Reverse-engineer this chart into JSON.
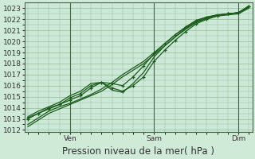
{
  "title": "Pression niveau de la mer( hPa )",
  "ylim": [
    1011.8,
    1023.5
  ],
  "yticks": [
    1012,
    1013,
    1014,
    1015,
    1016,
    1017,
    1018,
    1019,
    1020,
    1021,
    1022,
    1023
  ],
  "xtick_labels": [
    "Ven",
    "Sam",
    "Dim"
  ],
  "xtick_positions": [
    24,
    72,
    120
  ],
  "xlim": [
    -2,
    128
  ],
  "bg_color": "#d0ead8",
  "plot_bg": "#cce8d8",
  "grid_color": "#99bb99",
  "line_color": "#1a5c1a",
  "tick_fontsize": 6.5,
  "label_fontsize": 8.5,
  "series": [
    {
      "x": [
        0,
        6,
        12,
        18,
        24,
        30,
        36,
        42,
        48,
        54,
        60,
        66,
        72,
        78,
        84,
        90,
        96,
        102,
        108,
        114,
        120,
        126
      ],
      "y": [
        1012.5,
        1013.1,
        1013.7,
        1014.1,
        1014.4,
        1014.8,
        1015.2,
        1015.7,
        1016.3,
        1017.0,
        1017.6,
        1018.2,
        1019.0,
        1019.8,
        1020.6,
        1021.3,
        1021.9,
        1022.2,
        1022.4,
        1022.5,
        1022.6,
        1023.1
      ],
      "marker": false,
      "lw": 0.9
    },
    {
      "x": [
        0,
        6,
        12,
        18,
        24,
        30,
        36,
        42,
        48,
        54,
        60,
        66,
        72,
        78,
        84,
        90,
        96,
        102,
        108,
        114,
        120,
        126
      ],
      "y": [
        1013.0,
        1013.5,
        1014.0,
        1014.3,
        1014.7,
        1015.1,
        1015.8,
        1016.3,
        1016.2,
        1016.0,
        1016.8,
        1017.8,
        1018.9,
        1019.8,
        1020.6,
        1021.3,
        1021.9,
        1022.2,
        1022.4,
        1022.5,
        1022.6,
        1023.2
      ],
      "marker": true,
      "lw": 0.9
    },
    {
      "x": [
        0,
        6,
        12,
        18,
        24,
        30,
        36,
        42,
        48,
        54,
        60,
        66,
        72,
        78,
        84,
        90,
        96,
        102,
        108,
        114,
        120,
        126
      ],
      "y": [
        1013.1,
        1013.5,
        1013.9,
        1014.3,
        1014.9,
        1015.3,
        1016.0,
        1016.3,
        1015.8,
        1015.5,
        1016.0,
        1016.8,
        1018.2,
        1019.2,
        1020.1,
        1020.9,
        1021.6,
        1022.0,
        1022.3,
        1022.5,
        1022.6,
        1023.2
      ],
      "marker": true,
      "lw": 0.9
    },
    {
      "x": [
        0,
        6,
        12,
        18,
        24,
        30,
        36,
        42,
        48,
        54,
        60,
        66,
        72,
        78,
        84,
        90,
        96,
        102,
        108,
        114,
        120,
        126
      ],
      "y": [
        1013.2,
        1013.7,
        1014.1,
        1014.5,
        1015.1,
        1015.5,
        1016.2,
        1016.3,
        1015.6,
        1015.4,
        1016.2,
        1017.2,
        1018.6,
        1019.6,
        1020.4,
        1021.2,
        1021.8,
        1022.1,
        1022.3,
        1022.5,
        1022.6,
        1023.1
      ],
      "marker": false,
      "lw": 0.9
    },
    {
      "x": [
        0,
        6,
        12,
        18,
        24,
        30,
        36,
        42,
        48,
        54,
        60,
        66,
        72,
        78,
        84,
        90,
        96,
        102,
        108,
        114,
        120,
        126
      ],
      "y": [
        1012.3,
        1012.9,
        1013.5,
        1013.9,
        1014.3,
        1014.7,
        1015.1,
        1015.5,
        1016.1,
        1016.8,
        1017.4,
        1018.0,
        1018.8,
        1019.6,
        1020.4,
        1021.1,
        1021.7,
        1022.1,
        1022.3,
        1022.4,
        1022.5,
        1023.0
      ],
      "marker": false,
      "lw": 0.9
    }
  ]
}
